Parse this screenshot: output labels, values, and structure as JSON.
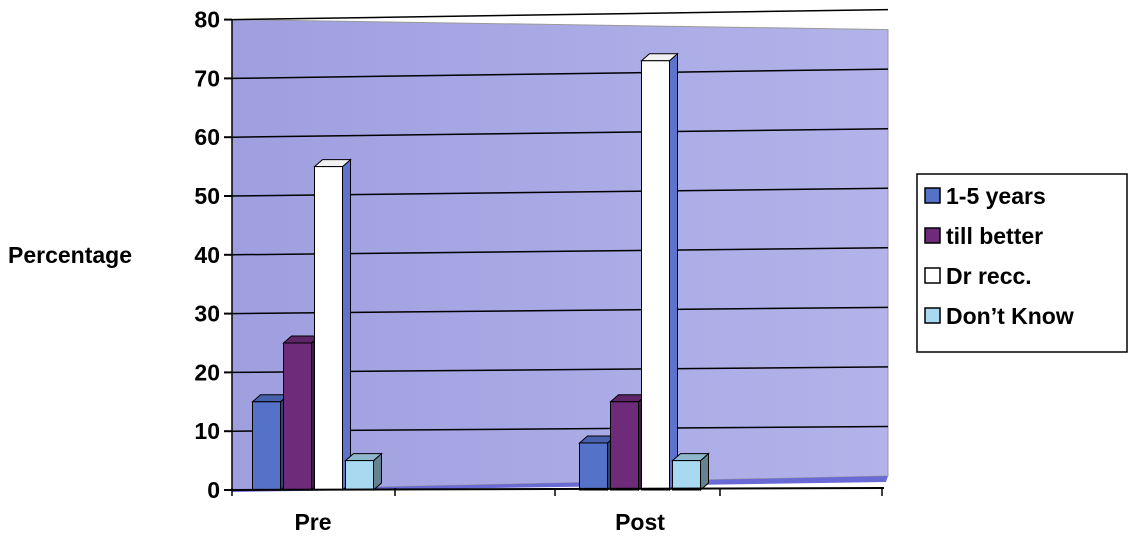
{
  "chart_data": {
    "type": "bar",
    "categories": [
      "Pre",
      "Post"
    ],
    "series": [
      {
        "name": "1-5 years",
        "color": "#5472c8",
        "values": [
          15,
          8
        ]
      },
      {
        "name": "till better",
        "color": "#6e2b7a",
        "values": [
          25,
          15
        ]
      },
      {
        "name": "Dr recc.",
        "color": "#ffffff",
        "values": [
          55,
          73
        ]
      },
      {
        "name": "Don’t Know",
        "color": "#a8d9f0",
        "values": [
          5,
          5
        ]
      }
    ],
    "title": "",
    "xlabel": "",
    "ylabel": "Percentage",
    "ylim": [
      0,
      80
    ],
    "yticks": [
      0,
      10,
      20,
      30,
      40,
      50,
      60,
      70,
      80
    ],
    "grid": true,
    "legend_position": "right",
    "wall_color": "#a7a7e3",
    "floor_color": "#6a6ad6",
    "style": "3d-clustered-column"
  }
}
